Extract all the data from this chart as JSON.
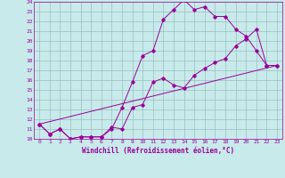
{
  "xlabel": "Windchill (Refroidissement éolien,°C)",
  "bg_color": "#c8eaea",
  "grid_color": "#9bbfbf",
  "line_color": "#990099",
  "xlim": [
    -0.5,
    23.5
  ],
  "ylim": [
    10,
    24
  ],
  "xticks": [
    0,
    1,
    2,
    3,
    4,
    5,
    6,
    7,
    8,
    9,
    10,
    11,
    12,
    13,
    14,
    15,
    16,
    17,
    18,
    19,
    20,
    21,
    22,
    23
  ],
  "yticks": [
    10,
    11,
    12,
    13,
    14,
    15,
    16,
    17,
    18,
    19,
    20,
    21,
    22,
    23,
    24
  ],
  "line1_x": [
    0,
    1,
    2,
    3,
    4,
    5,
    6,
    7,
    8,
    9,
    10,
    11,
    12,
    13,
    14,
    15,
    16,
    17,
    18,
    19,
    20,
    21,
    22,
    23
  ],
  "line1_y": [
    11.5,
    10.5,
    11.0,
    10.0,
    10.2,
    10.2,
    10.2,
    11.0,
    13.2,
    15.8,
    18.5,
    19.0,
    22.2,
    23.2,
    24.2,
    23.2,
    23.5,
    22.5,
    22.5,
    21.2,
    20.5,
    19.0,
    17.5,
    17.5
  ],
  "line2_x": [
    0,
    1,
    2,
    3,
    4,
    5,
    6,
    7,
    8,
    9,
    10,
    11,
    12,
    13,
    14,
    15,
    16,
    17,
    18,
    19,
    20,
    21,
    22,
    23
  ],
  "line2_y": [
    11.5,
    10.5,
    11.0,
    10.0,
    10.2,
    10.2,
    10.2,
    11.2,
    11.0,
    13.2,
    13.5,
    15.8,
    16.2,
    15.5,
    15.2,
    16.5,
    17.2,
    17.8,
    18.2,
    19.5,
    20.2,
    21.2,
    17.5,
    17.5
  ],
  "line3_x": [
    0,
    23
  ],
  "line3_y": [
    11.5,
    17.5
  ],
  "tick_fontsize": 4.5,
  "xlabel_fontsize": 5.5
}
